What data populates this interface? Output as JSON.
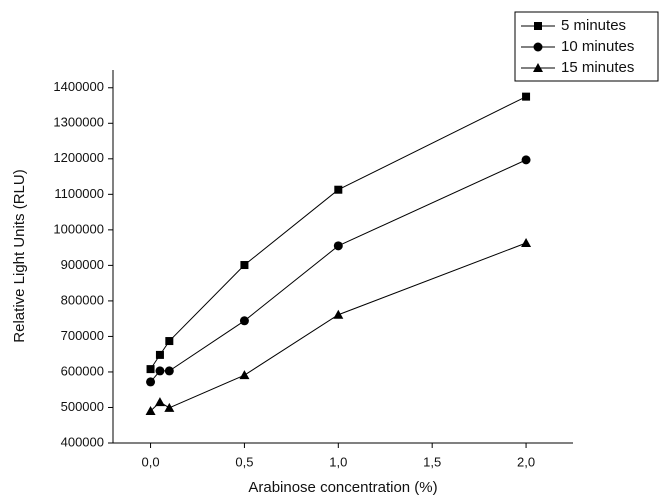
{
  "chart_data": {
    "type": "line",
    "x_label": "Arabinose concentration (%)",
    "y_label": "Relative Light Units (RLU)",
    "x": [
      0,
      0.05,
      0.1,
      0.5,
      1,
      2
    ],
    "xlim": [
      -0.2,
      2.25
    ],
    "xticks": [
      {
        "value": 0,
        "label": "0,0"
      },
      {
        "value": 0.5,
        "label": "0,5"
      },
      {
        "value": 1,
        "label": "1,0"
      },
      {
        "value": 1.5,
        "label": "1,5"
      },
      {
        "value": 2,
        "label": "2,0"
      }
    ],
    "ylim": [
      400000,
      1450000
    ],
    "yticks": [
      400000,
      500000,
      600000,
      700000,
      800000,
      900000,
      1000000,
      1100000,
      1200000,
      1300000,
      1400000
    ],
    "legend": "upper-right",
    "series": [
      {
        "name": "5 minutes",
        "color": "#000000",
        "marker": "square",
        "values": [
          608000,
          648000,
          687000,
          901000,
          1113000,
          1375000
        ]
      },
      {
        "name": "10 minutes",
        "color": "#000000",
        "marker": "circle",
        "values": [
          572000,
          603000,
          603000,
          744000,
          955000,
          1197000
        ]
      },
      {
        "name": "15 minutes",
        "color": "#000000",
        "marker": "triangle",
        "values": [
          490000,
          515000,
          499000,
          591000,
          761000,
          963000
        ]
      }
    ]
  }
}
